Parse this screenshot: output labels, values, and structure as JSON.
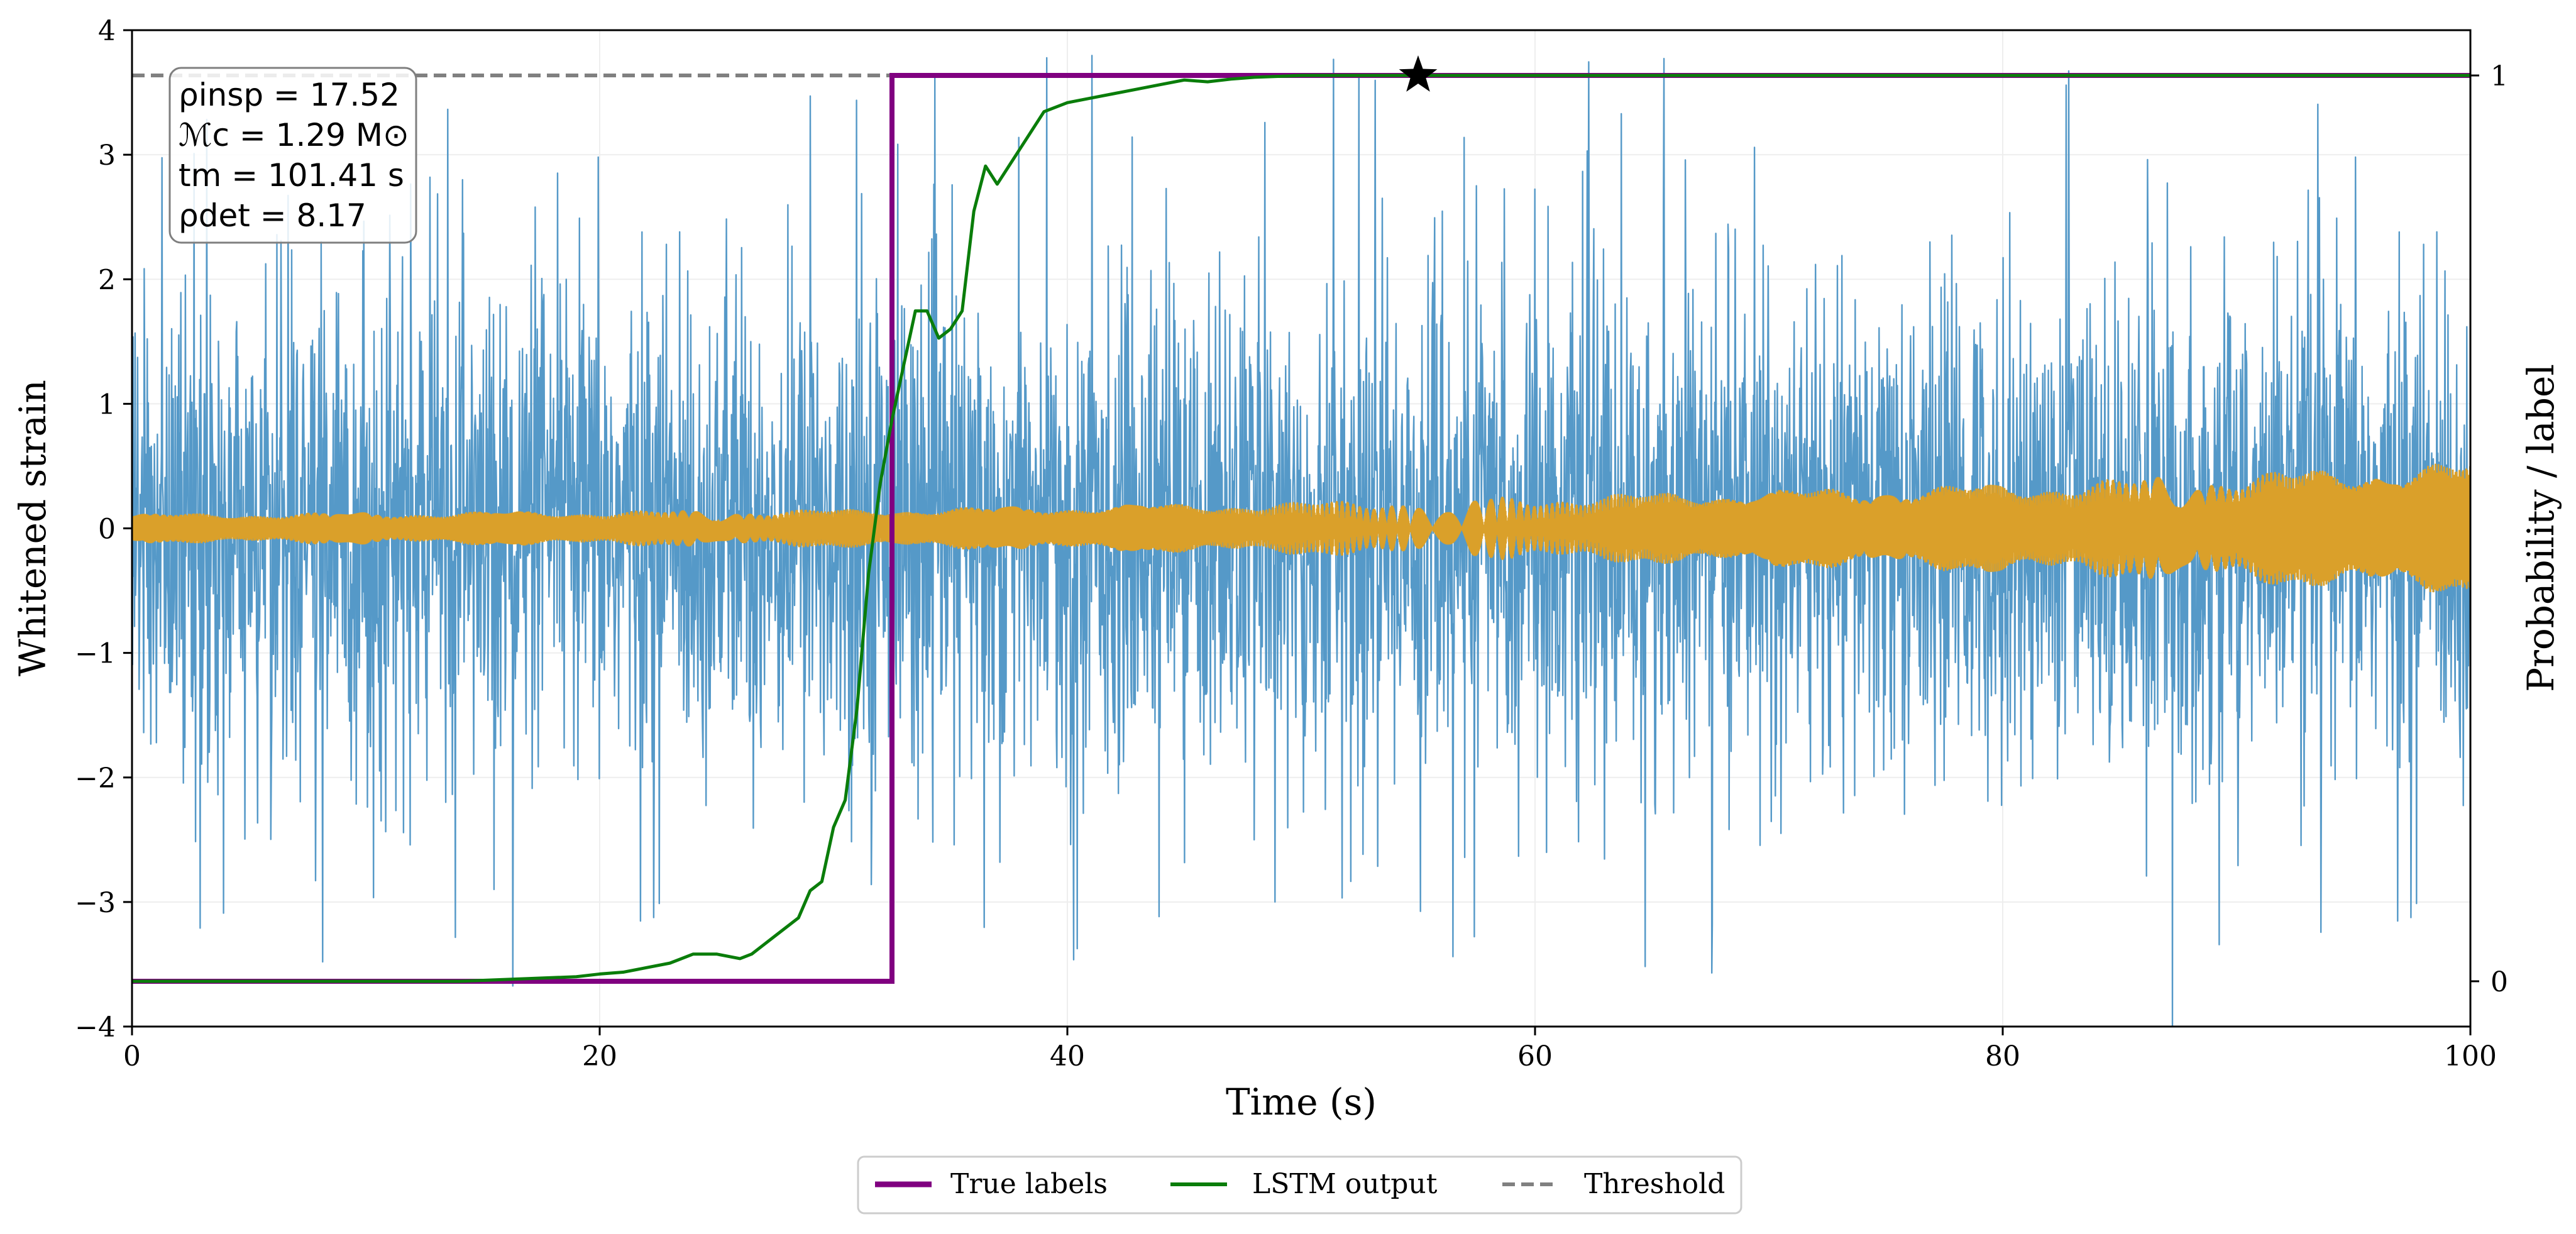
{
  "colors": {
    "noise": "#5599c8",
    "signal": "#daa02a",
    "true_labels": "#800080",
    "lstm": "#0a7d0a",
    "threshold": "#808080",
    "grid": "#eeeeee"
  },
  "chart_data": {
    "type": "line",
    "title": "",
    "xlabel": "Time (s)",
    "ylabel": "Whitened strain",
    "ylabel_right": "Probability / label",
    "xlim": [
      0,
      100
    ],
    "ylim": [
      -4,
      4
    ],
    "ylim_right": [
      -0.05,
      1.05
    ],
    "xticks": [
      0,
      20,
      40,
      60,
      80,
      100
    ],
    "xtick_labels": [
      "0",
      "20",
      "40",
      "60",
      "80",
      "100"
    ],
    "yticks": [
      -4,
      -3,
      -2,
      -1,
      0,
      1,
      2,
      3,
      4
    ],
    "ytick_labels": [
      "−4",
      "−3",
      "−2",
      "−1",
      "0",
      "1",
      "2",
      "3",
      "4"
    ],
    "yticks_right": [
      0,
      1
    ],
    "ytick_labels_right": [
      "0",
      "1"
    ],
    "grid": true,
    "annotation": {
      "rho_insp": "ρinsp = 17.52",
      "chirp_mass": "ℳc = 1.29 M⊙",
      "t_merger": "tm = 101.41 s",
      "rho_det": "ρdet = 8.17"
    },
    "legend_position": "below",
    "legend": [
      "True labels",
      "LSTM output",
      "Threshold"
    ],
    "series": [
      {
        "name": "Whitened strain (noise)",
        "axis": "left",
        "description": "noisy strain, approx ±1 std with spikes to ±3.8",
        "typical_envelope": 1.6,
        "peak": 3.85
      },
      {
        "name": "Injected signal",
        "axis": "left",
        "description": "chirp envelope",
        "envelope": [
          [
            0,
            0.1
          ],
          [
            30,
            0.13
          ],
          [
            50,
            0.18
          ],
          [
            60,
            0.22
          ],
          [
            80,
            0.3
          ],
          [
            100,
            0.45
          ]
        ]
      },
      {
        "name": "True labels",
        "axis": "right",
        "x": [
          0,
          32.5,
          32.5,
          100
        ],
        "y": [
          0,
          0,
          1,
          1
        ]
      },
      {
        "name": "LSTM output",
        "axis": "right",
        "x": [
          0,
          14,
          17,
          19,
          20,
          21,
          22,
          23,
          24,
          25,
          26,
          26.5,
          27,
          27.5,
          28,
          28.5,
          29,
          29.5,
          30,
          30.5,
          31,
          31.5,
          32,
          32.5,
          33,
          33.5,
          34,
          34.5,
          35,
          35.5,
          36,
          36.5,
          37,
          37.5,
          38,
          38.5,
          39,
          40,
          41,
          42,
          43,
          44,
          45,
          46,
          47,
          48,
          49,
          50,
          52,
          55,
          100
        ],
        "y": [
          0,
          0,
          0.003,
          0.005,
          0.008,
          0.01,
          0.015,
          0.02,
          0.03,
          0.03,
          0.025,
          0.03,
          0.04,
          0.05,
          0.06,
          0.07,
          0.1,
          0.11,
          0.17,
          0.2,
          0.3,
          0.45,
          0.55,
          0.62,
          0.68,
          0.74,
          0.74,
          0.71,
          0.72,
          0.74,
          0.85,
          0.9,
          0.88,
          0.9,
          0.92,
          0.94,
          0.96,
          0.97,
          0.975,
          0.98,
          0.985,
          0.99,
          0.995,
          0.993,
          0.996,
          0.998,
          0.999,
          1,
          1,
          1,
          1
        ]
      },
      {
        "name": "Threshold",
        "axis": "right",
        "value": 1.0
      }
    ],
    "detection_marker": {
      "x": 55,
      "y": 1.0,
      "symbol": "star"
    }
  }
}
